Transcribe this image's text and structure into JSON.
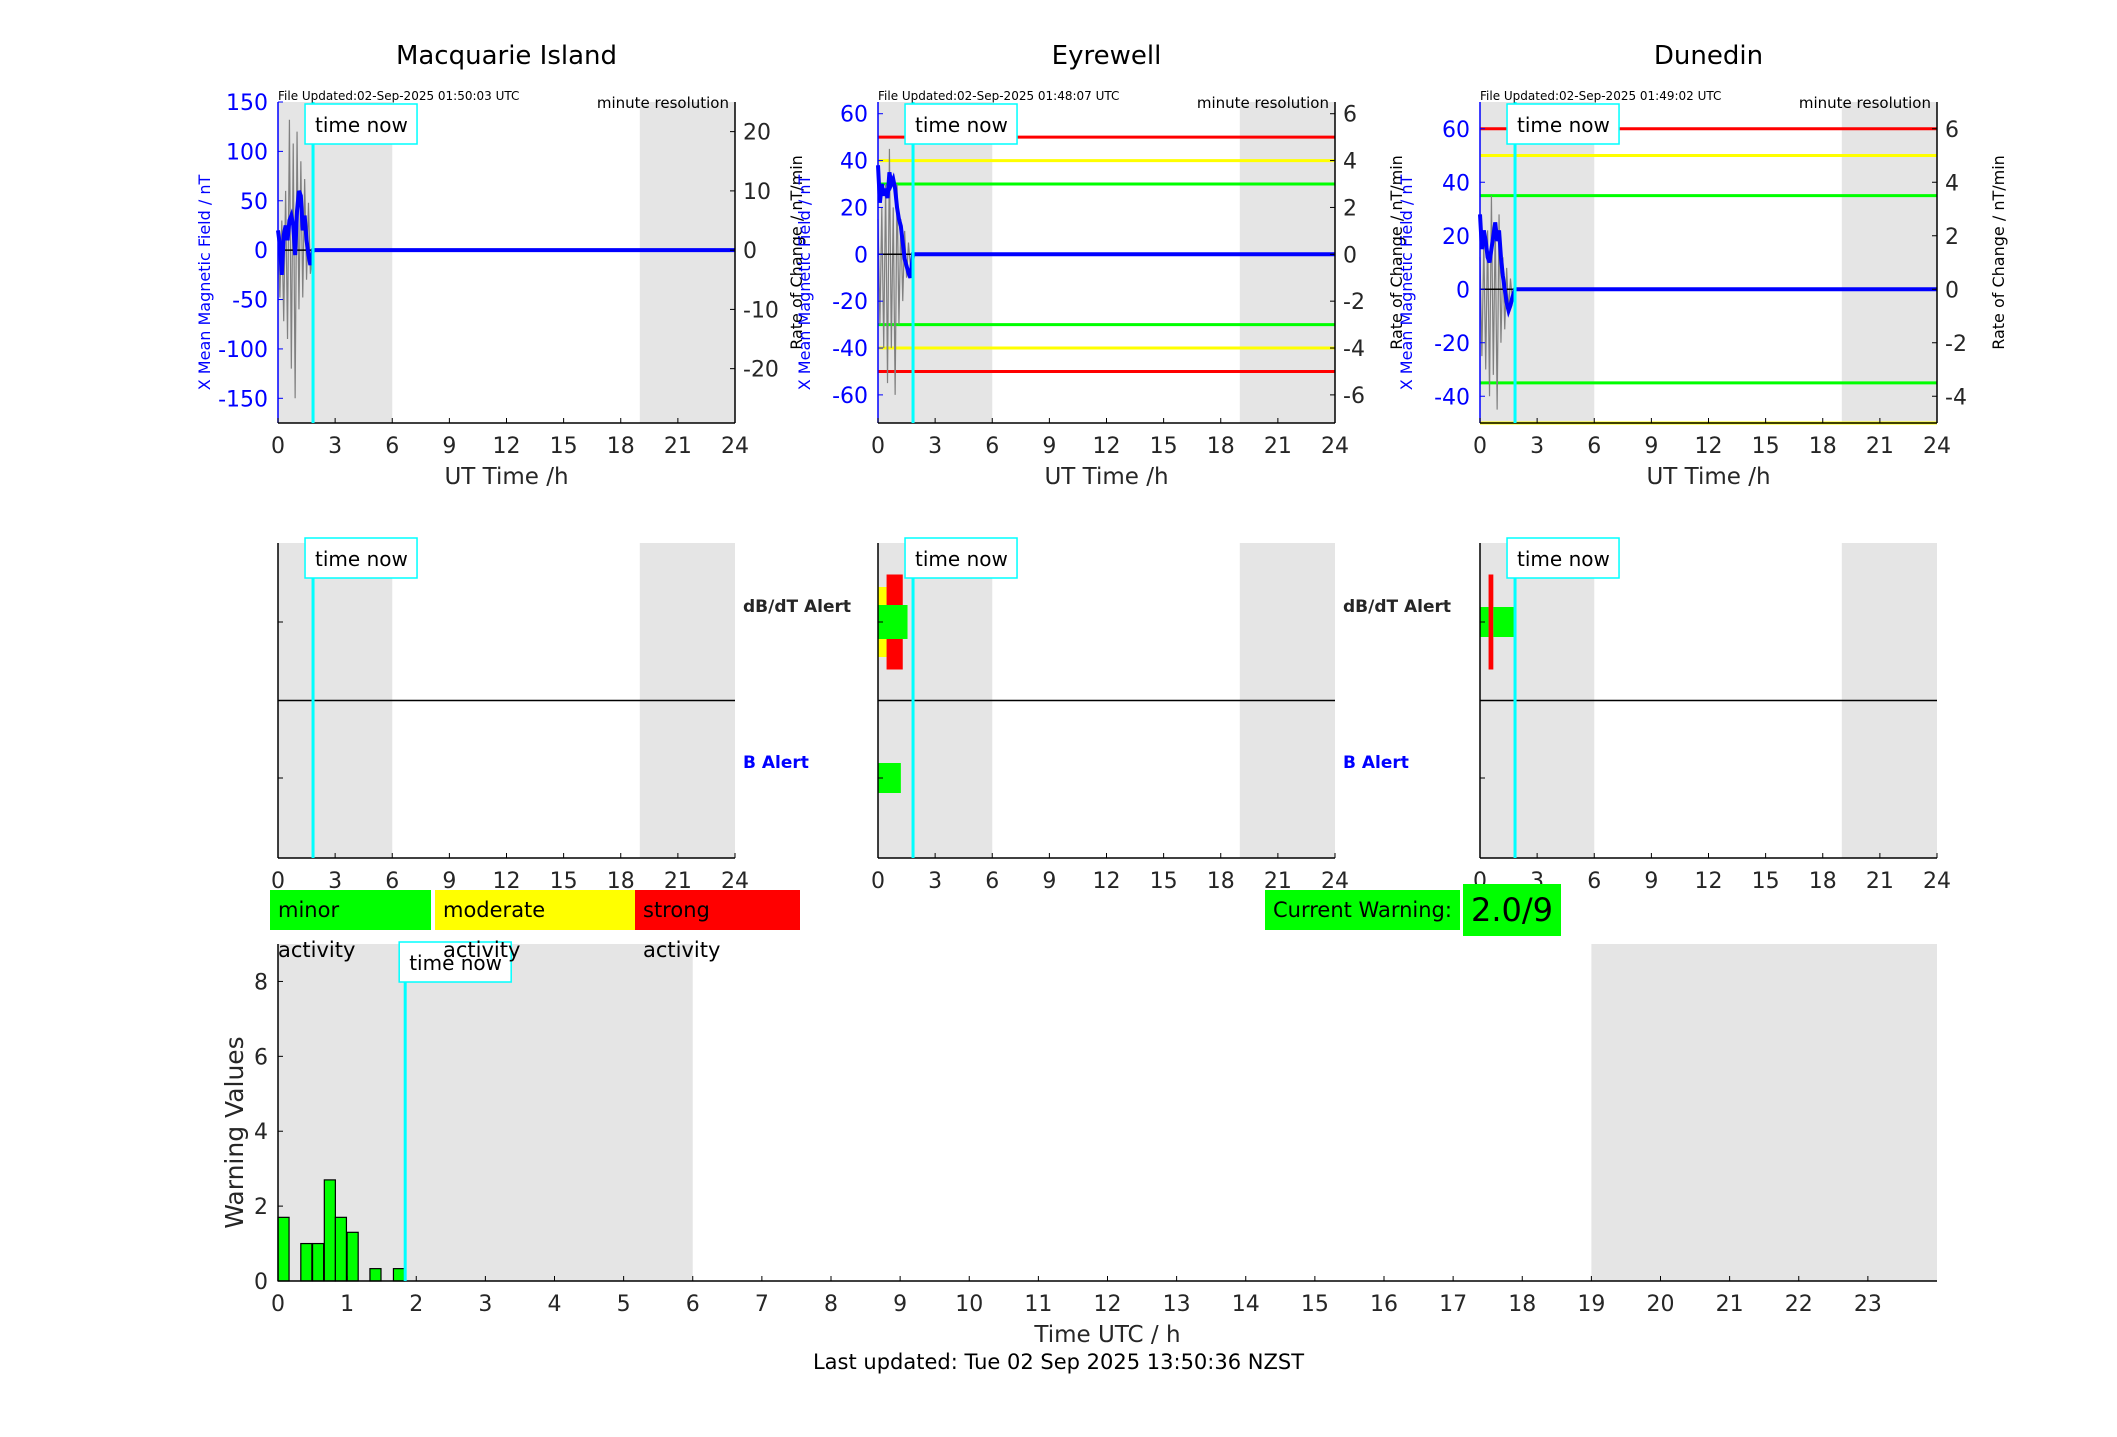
{
  "colors": {
    "x_field": "#0000ff",
    "rate": "#808080",
    "time_now": "#00ffff",
    "night": "#e5e5e5",
    "minor": "#00ff00",
    "moderate": "#ffff00",
    "strong": "#ff0000"
  },
  "time_now_h": 1.84,
  "legend": {
    "minor": "minor activity",
    "moderate": "moderate activity",
    "strong": "strong activity"
  },
  "current_warning": {
    "label": "Current Warning:",
    "value": "2.0/9"
  },
  "footer": "Last updated: Tue 02 Sep 2025 13:50:36 NZST",
  "time_now_label": "time now",
  "alert_labels": {
    "dbdt": "dB/dT Alert",
    "b": "B Alert"
  },
  "chart_data": [
    {
      "type": "line",
      "title": "Macquarie Island",
      "file_updated": "File Updated:02-Sep-2025 01:50:03 UTC",
      "resolution": "minute resolution",
      "xlabel": "UT Time /h",
      "ylabel_left": "X Mean Magnetic Field / nT",
      "ylabel_right": "Rate of Change / nT/min",
      "xlim": [
        0,
        24
      ],
      "xticks": [
        "0",
        "3",
        "6",
        "9",
        "12",
        "15",
        "18",
        "21",
        "24"
      ],
      "ylim_left": [
        -175,
        150
      ],
      "yticks_left": [
        "150",
        "100",
        "50",
        "0",
        "-50",
        "-100",
        "-150"
      ],
      "yticks_left_values": [
        150,
        100,
        50,
        0,
        -50,
        -100,
        -150
      ],
      "ylim_right": [
        -29.17,
        25
      ],
      "yticks_right": [
        "20",
        "10",
        "0",
        "-10",
        "-20"
      ],
      "yticks_right_values": [
        20,
        10,
        0,
        -10,
        -20
      ],
      "night_shading_h": [
        [
          0,
          6
        ],
        [
          19,
          24
        ]
      ],
      "threshold_lines": [],
      "x_field_series": {
        "x": [
          0,
          0.1,
          0.2,
          0.3,
          0.4,
          0.5,
          0.6,
          0.7,
          0.8,
          0.9,
          1.0,
          1.1,
          1.2,
          1.3,
          1.4,
          1.5,
          1.6,
          1.7,
          1.84,
          24
        ],
        "y": [
          20,
          5,
          -25,
          15,
          25,
          10,
          30,
          35,
          25,
          -5,
          40,
          60,
          55,
          20,
          35,
          10,
          -5,
          -15,
          0,
          0
        ]
      },
      "rate_series": {
        "x": [
          0,
          0.1,
          0.2,
          0.3,
          0.4,
          0.5,
          0.6,
          0.7,
          0.8,
          0.9,
          1.0,
          1.1,
          1.2,
          1.3,
          1.4,
          1.5,
          1.6,
          1.7,
          1.84
        ],
        "y": [
          3,
          -8,
          5,
          -12,
          10,
          -15,
          22,
          -20,
          18,
          -25,
          20,
          -10,
          15,
          -8,
          12,
          -5,
          8,
          -4,
          0
        ]
      },
      "alerts": {
        "dbdt": [],
        "b": []
      }
    },
    {
      "type": "line",
      "title": "Eyrewell",
      "file_updated": "File Updated:02-Sep-2025 01:48:07 UTC",
      "resolution": "minute resolution",
      "xlabel": "UT Time /h",
      "ylabel_left": "X Mean Magnetic Field / nT",
      "ylabel_right": "Rate of Change / nT/min",
      "xlim": [
        0,
        24
      ],
      "xticks": [
        "0",
        "3",
        "6",
        "9",
        "12",
        "15",
        "18",
        "21",
        "24"
      ],
      "ylim_left": [
        -72,
        65
      ],
      "yticks_left": [
        "60",
        "40",
        "20",
        "0",
        "-20",
        "-40",
        "-60"
      ],
      "yticks_left_values": [
        60,
        40,
        20,
        0,
        -20,
        -40,
        -60
      ],
      "ylim_right": [
        -7.2,
        6.5
      ],
      "yticks_right": [
        "6",
        "4",
        "2",
        "0",
        "-2",
        "-4",
        "-6"
      ],
      "yticks_right_values": [
        6,
        4,
        2,
        0,
        -2,
        -4,
        -6
      ],
      "night_shading_h": [
        [
          0,
          6
        ],
        [
          19,
          24
        ]
      ],
      "threshold_lines": [
        {
          "y": 50,
          "color": "#ff0000"
        },
        {
          "y": 40,
          "color": "#ffff00"
        },
        {
          "y": 30,
          "color": "#00ff00"
        },
        {
          "y": -30,
          "color": "#00ff00"
        },
        {
          "y": -40,
          "color": "#ffff00"
        },
        {
          "y": -50,
          "color": "#ff0000"
        }
      ],
      "x_field_series": {
        "x": [
          0,
          0.1,
          0.2,
          0.3,
          0.4,
          0.5,
          0.6,
          0.7,
          0.8,
          0.9,
          1.0,
          1.1,
          1.2,
          1.3,
          1.4,
          1.5,
          1.6,
          1.7,
          1.84,
          24
        ],
        "y": [
          38,
          22,
          30,
          25,
          28,
          24,
          35,
          30,
          32,
          28,
          20,
          15,
          12,
          5,
          -2,
          -5,
          -8,
          -10,
          0,
          0
        ]
      },
      "rate_series": {
        "x": [
          0,
          0.1,
          0.2,
          0.3,
          0.4,
          0.5,
          0.6,
          0.7,
          0.8,
          0.9,
          1.0,
          1.1,
          1.2,
          1.3,
          1.4,
          1.5,
          1.6,
          1.7,
          1.84
        ],
        "y": [
          1.5,
          -3,
          2,
          -4,
          3,
          -5.5,
          4.5,
          -4,
          2,
          -6,
          3,
          -3,
          1.5,
          -2,
          1,
          -1,
          0.5,
          -0.5,
          0
        ]
      },
      "alerts": {
        "dbdt": [
          {
            "start": 0.0,
            "end": 0.45,
            "level": "moderate"
          },
          {
            "start": 0.45,
            "end": 1.3,
            "level": "strong"
          }
        ],
        "b": [
          {
            "start": 0.0,
            "end": 1.2,
            "level": "minor"
          }
        ]
      }
    },
    {
      "type": "line",
      "title": "Dunedin",
      "file_updated": "File Updated:02-Sep-2025 01:49:02 UTC",
      "resolution": "minute resolution",
      "xlabel": "UT Time /h",
      "ylabel_left": "X Mean Magnetic Field / nT",
      "ylabel_right": "Rate of Change / nT/min",
      "xlim": [
        0,
        24
      ],
      "xticks": [
        "0",
        "3",
        "6",
        "9",
        "12",
        "15",
        "18",
        "21",
        "24"
      ],
      "ylim_left": [
        -50,
        70
      ],
      "yticks_left": [
        "60",
        "40",
        "20",
        "0",
        "-20",
        "-40"
      ],
      "yticks_left_values": [
        60,
        40,
        20,
        0,
        -20,
        -40
      ],
      "ylim_right": [
        -5,
        7
      ],
      "yticks_right": [
        "6",
        "4",
        "2",
        "0",
        "-2",
        "-4"
      ],
      "yticks_right_values": [
        6,
        4,
        2,
        0,
        -2,
        -4
      ],
      "night_shading_h": [
        [
          0,
          6
        ],
        [
          19,
          24
        ]
      ],
      "threshold_lines": [
        {
          "y": 60,
          "color": "#ff0000"
        },
        {
          "y": 50,
          "color": "#ffff00"
        },
        {
          "y": 35,
          "color": "#00ff00"
        },
        {
          "y": -35,
          "color": "#00ff00"
        },
        {
          "y": -50,
          "color": "#ffff00"
        }
      ],
      "x_field_series": {
        "x": [
          0,
          0.1,
          0.2,
          0.3,
          0.4,
          0.5,
          0.6,
          0.7,
          0.8,
          0.9,
          1.0,
          1.1,
          1.2,
          1.3,
          1.4,
          1.5,
          1.6,
          1.7,
          1.84,
          24
        ],
        "y": [
          28,
          15,
          22,
          18,
          12,
          10,
          15,
          20,
          25,
          18,
          22,
          12,
          5,
          0,
          -5,
          -8,
          -6,
          -3,
          0,
          0
        ]
      },
      "rate_series": {
        "x": [
          0,
          0.1,
          0.2,
          0.3,
          0.4,
          0.5,
          0.6,
          0.7,
          0.8,
          0.9,
          1.0,
          1.1,
          1.2,
          1.3,
          1.4,
          1.5,
          1.6,
          1.7,
          1.84
        ],
        "y": [
          1.2,
          -2.5,
          1.8,
          -3,
          2.2,
          -4,
          3.5,
          -3.2,
          2.5,
          -4.5,
          2.8,
          -2,
          1.2,
          -1.5,
          0.8,
          -0.8,
          0.4,
          -0.4,
          0
        ]
      },
      "alerts": {
        "dbdt": [
          {
            "start": 0.0,
            "end": 0.45,
            "level": "minor"
          },
          {
            "start": 0.45,
            "end": 0.7,
            "level": "strong"
          },
          {
            "start": 0.7,
            "end": 1.85,
            "level": "minor"
          }
        ],
        "b": []
      }
    },
    {
      "type": "bar",
      "xlabel": "Time UTC / h",
      "ylabel": "Warning Values",
      "xlim": [
        0,
        24
      ],
      "xticks": [
        "0",
        "1",
        "2",
        "3",
        "4",
        "5",
        "6",
        "7",
        "8",
        "9",
        "10",
        "11",
        "12",
        "13",
        "14",
        "15",
        "16",
        "17",
        "18",
        "19",
        "20",
        "21",
        "22",
        "23"
      ],
      "ylim": [
        0,
        9
      ],
      "yticks": [
        "0",
        "2",
        "4",
        "6",
        "8"
      ],
      "yticks_values": [
        0,
        2,
        4,
        6,
        8
      ],
      "night_shading_h": [
        [
          0,
          6
        ],
        [
          19,
          24
        ]
      ],
      "bar_width_h": 0.16,
      "bars": [
        {
          "x": 0.0,
          "value": 1.7
        },
        {
          "x": 0.33,
          "value": 1.0
        },
        {
          "x": 0.5,
          "value": 1.0
        },
        {
          "x": 0.67,
          "value": 2.7
        },
        {
          "x": 0.83,
          "value": 1.7
        },
        {
          "x": 1.0,
          "value": 1.3
        },
        {
          "x": 1.33,
          "value": 0.33
        },
        {
          "x": 1.67,
          "value": 0.33
        }
      ]
    }
  ]
}
